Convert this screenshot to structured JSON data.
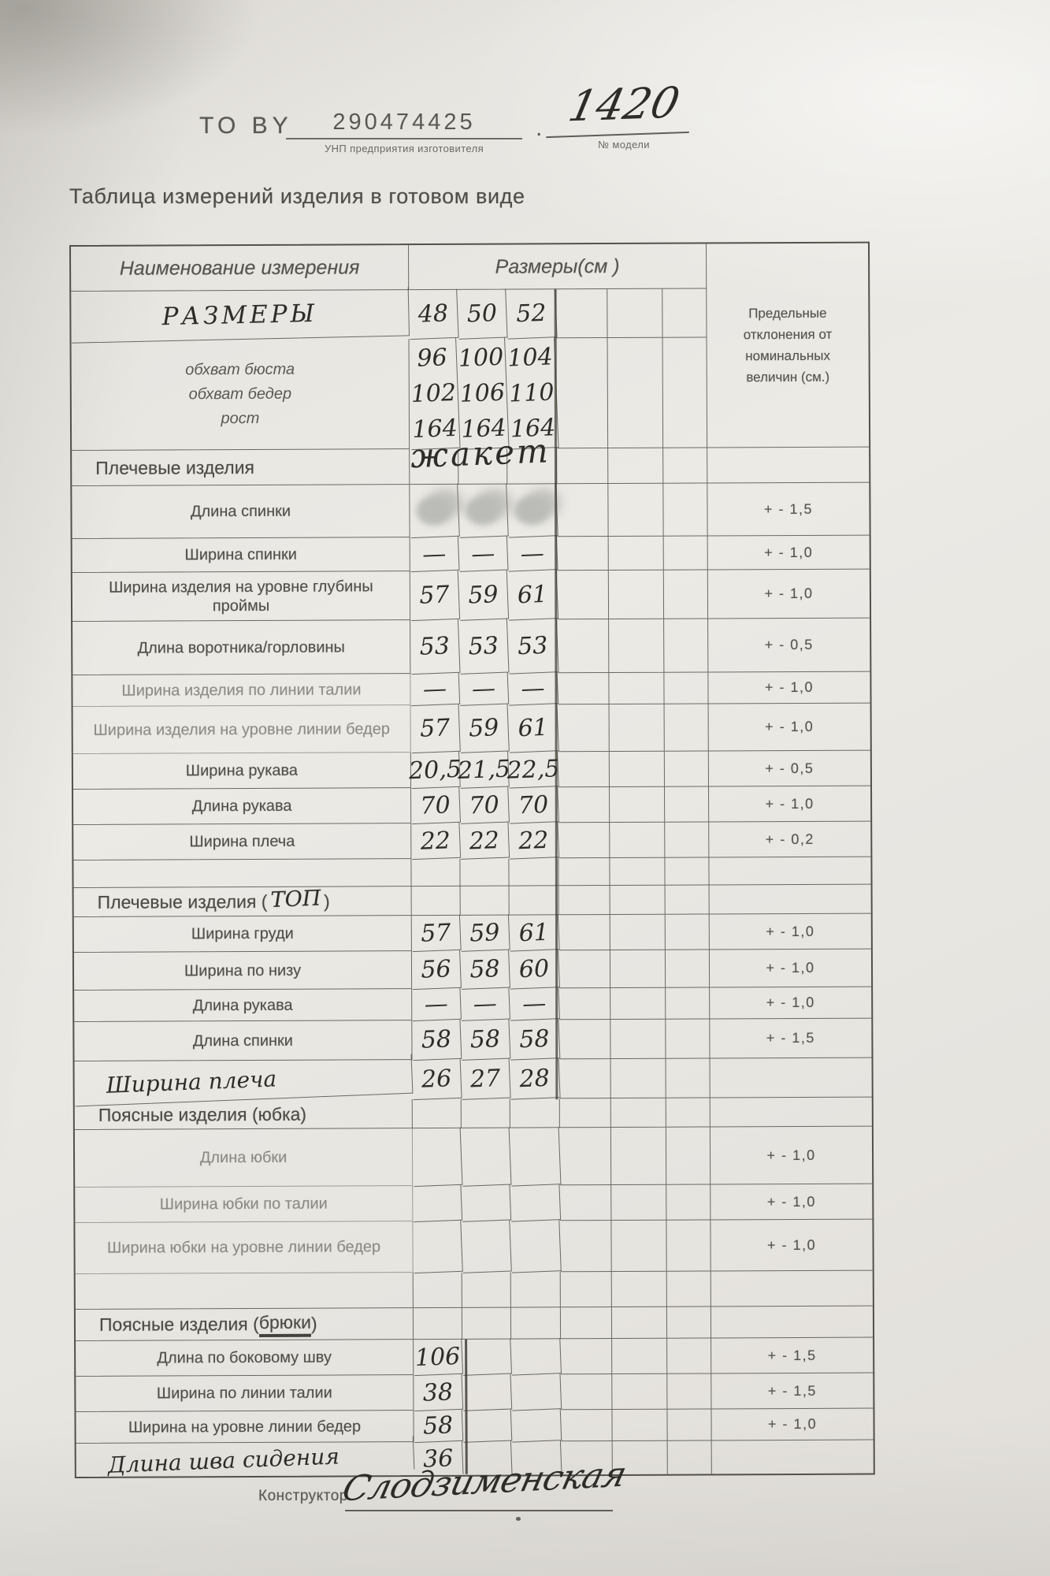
{
  "header": {
    "code_label": "ТО BY",
    "code_value": "290474425",
    "code_caption": "УНП предприятия изготовителя",
    "separator_dot": ".",
    "model_value": "1420",
    "model_caption": "№ модели"
  },
  "title": "Таблица измерений изделия в готовом виде",
  "table": {
    "name_header": "Наименование измерения",
    "sizes_header": "Размеры(см )",
    "tolerance_header": "Предельные отклонения от номинальных величин (см.)",
    "sizes_row_label": "РАЗМЕРЫ",
    "sizes": [
      "48",
      "50",
      "52"
    ],
    "params": {
      "labels": [
        "обхват бюста",
        "обхват бедер",
        "рост"
      ],
      "columns": [
        [
          "96",
          "102",
          "164"
        ],
        [
          "100",
          "106",
          "164"
        ],
        [
          "104",
          "110",
          "164"
        ]
      ]
    },
    "jacket_annotation": "жакет",
    "rows": [
      {
        "kind": "section",
        "pre": "Плечевые изделия"
      },
      {
        "kind": "data",
        "label": "Длина спинки",
        "values": [
          "",
          "",
          ""
        ],
        "smudge": true,
        "tol": "+ - 1,5"
      },
      {
        "kind": "data",
        "label": "Ширина спинки",
        "values": [
          "—",
          "—",
          "—"
        ],
        "tol": "+ - 1,0"
      },
      {
        "kind": "data",
        "label": "Ширина изделия на уровне глубины проймы",
        "values": [
          "57",
          "59",
          "61"
        ],
        "tol": "+ - 1,0"
      },
      {
        "kind": "data",
        "label": "Длина воротника/горловины",
        "values": [
          "53",
          "53",
          "53"
        ],
        "tol": "+ - 0,5"
      },
      {
        "kind": "data",
        "label": "Ширина изделия по линии талии",
        "values": [
          "—",
          "—",
          "—"
        ],
        "faded": true,
        "tol": "+ - 1,0"
      },
      {
        "kind": "data",
        "label": "Ширина изделия на уровне линии бедер",
        "values": [
          "57",
          "59",
          "61"
        ],
        "faded": true,
        "tol": "+ - 1,0"
      },
      {
        "kind": "data",
        "label": "Ширина рукава",
        "values": [
          "20,5",
          "21,5",
          "22,5"
        ],
        "tol": "+ - 0,5"
      },
      {
        "kind": "data",
        "label": "Длина рукава",
        "values": [
          "70",
          "70",
          "70"
        ],
        "tol": "+ - 1,0"
      },
      {
        "kind": "data",
        "label": "Ширина плеча",
        "values": [
          "22",
          "22",
          "22"
        ],
        "tol": "+ - 0,2"
      },
      {
        "kind": "spacer"
      },
      {
        "kind": "section",
        "pre": "Плечевые изделия (",
        "hand": "ТОП",
        "post": ")"
      },
      {
        "kind": "data",
        "label": "Ширина груди",
        "values": [
          "57",
          "59",
          "61"
        ],
        "tol": "+ - 1,0"
      },
      {
        "kind": "data",
        "label": "Ширина по низу",
        "values": [
          "56",
          "58",
          "60"
        ],
        "tol": "+ - 1,0"
      },
      {
        "kind": "data",
        "label": "Длина рукава",
        "values": [
          "—",
          "—",
          "—"
        ],
        "tol": "+ - 1,0"
      },
      {
        "kind": "data",
        "label": "Длина спинки",
        "values": [
          "58",
          "58",
          "58"
        ],
        "tol": "+ - 1,5"
      },
      {
        "kind": "data",
        "label": "Ширина плеча",
        "hand": true,
        "values": [
          "26",
          "27",
          "28"
        ],
        "tol": ""
      },
      {
        "kind": "section",
        "pre": "Поясные изделия (юбка)"
      },
      {
        "kind": "data",
        "label": "Длина юбки",
        "values": [
          "",
          "",
          ""
        ],
        "faded": true,
        "tol": "+ - 1,0"
      },
      {
        "kind": "data",
        "label": "Ширина юбки по талии",
        "values": [
          "",
          "",
          ""
        ],
        "faded": true,
        "tol": "+ - 1,0"
      },
      {
        "kind": "data",
        "label": "Ширина юбки на уровне линии бедер",
        "values": [
          "",
          "",
          ""
        ],
        "faded": true,
        "tol": "+ - 1,0"
      },
      {
        "kind": "spacer"
      },
      {
        "kind": "section",
        "pre": "Поясные изделия (",
        "word": "брюки",
        "post": ")",
        "underline": true
      },
      {
        "kind": "data",
        "label": "Длина по боковому шву",
        "values": [
          "106",
          "",
          ""
        ],
        "tol": "+ - 1,5"
      },
      {
        "kind": "data",
        "label": "Ширина по линии талии",
        "values": [
          "38",
          "",
          ""
        ],
        "tol": "+ - 1,5"
      },
      {
        "kind": "data",
        "label": "Ширина на уровне линии бедер",
        "values": [
          "58",
          "",
          ""
        ],
        "tol": "+ - 1,0"
      },
      {
        "kind": "data",
        "label": "Длина шва сидения",
        "hand": true,
        "values": [
          "36",
          "",
          ""
        ],
        "tol": ""
      }
    ]
  },
  "footer": {
    "designer_label": "Конструктор",
    "signature": "Слодзименская"
  }
}
